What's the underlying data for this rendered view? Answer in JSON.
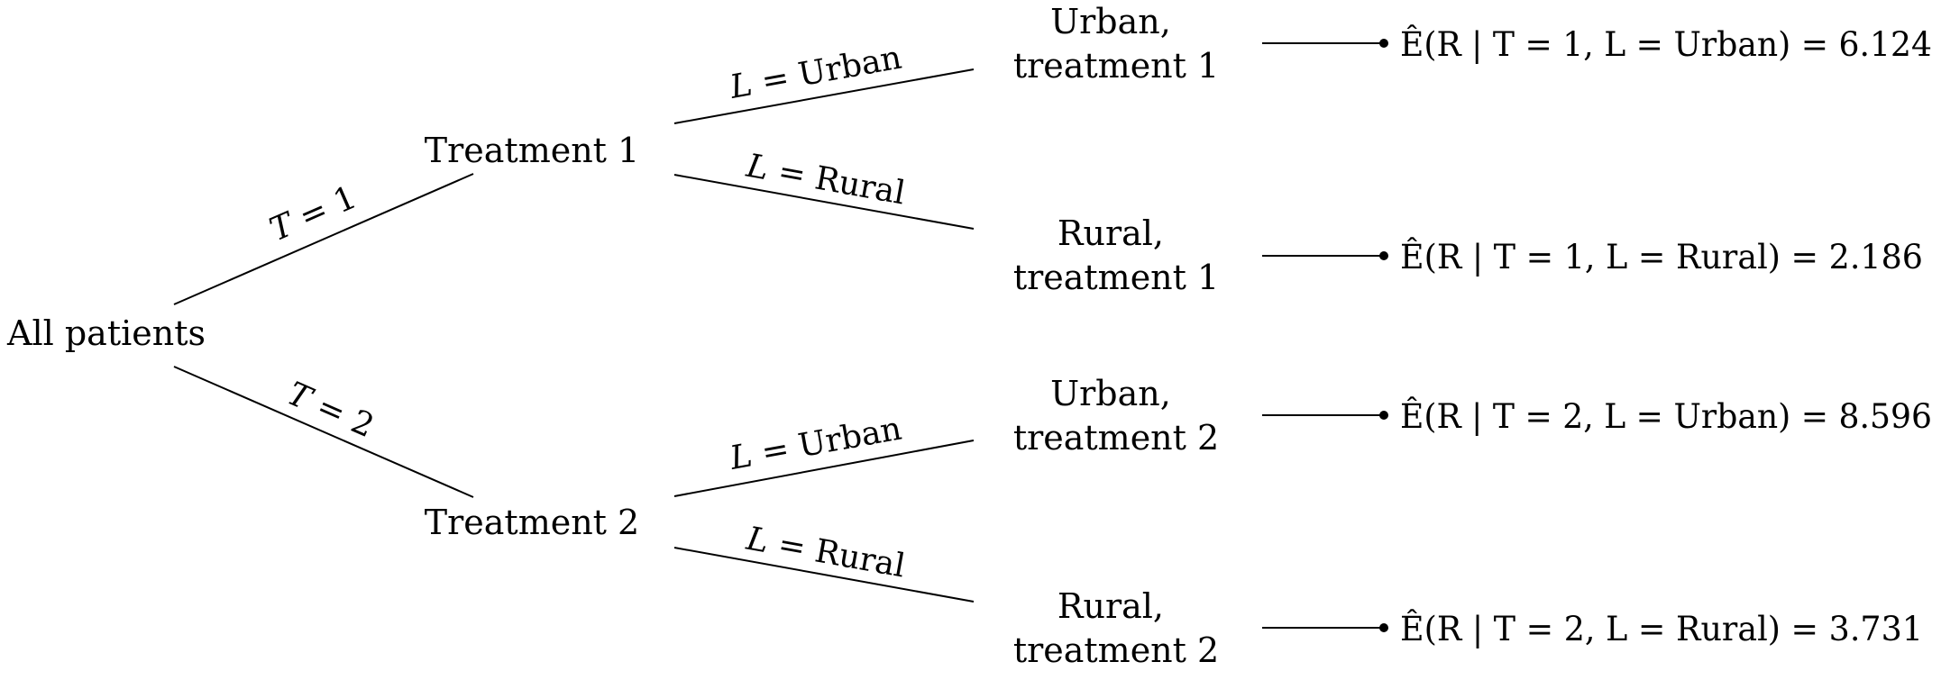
{
  "root": {
    "label": "All patients"
  },
  "branches": [
    {
      "edge": {
        "var": "T",
        "rel": " = ",
        "value": "1"
      },
      "node": "Treatment 1",
      "leaves": [
        {
          "edge": {
            "var": "L",
            "rel": " = ",
            "value": "Urban"
          },
          "node_line1": "Urban,",
          "node_line2": "treatment 1",
          "result": "Ê(R | T = 1, L = Urban) = 6.124"
        },
        {
          "edge": {
            "var": "L",
            "rel": " = ",
            "value": "Rural"
          },
          "node_line1": "Rural,",
          "node_line2": "treatment 1",
          "result": "Ê(R | T = 1, L = Rural) = 2.186"
        }
      ]
    },
    {
      "edge": {
        "var": "T",
        "rel": " = ",
        "value": "2"
      },
      "node": "Treatment 2",
      "leaves": [
        {
          "edge": {
            "var": "L",
            "rel": " = ",
            "value": "Urban"
          },
          "node_line1": "Urban,",
          "node_line2": "treatment 2",
          "result": "Ê(R | T = 2, L = Urban) = 8.596"
        },
        {
          "edge": {
            "var": "L",
            "rel": " = ",
            "value": "Rural"
          },
          "node_line1": "Rural,",
          "node_line2": "treatment 2",
          "result": "Ê(R | T = 2, L = Rural) = 3.731"
        }
      ]
    }
  ]
}
